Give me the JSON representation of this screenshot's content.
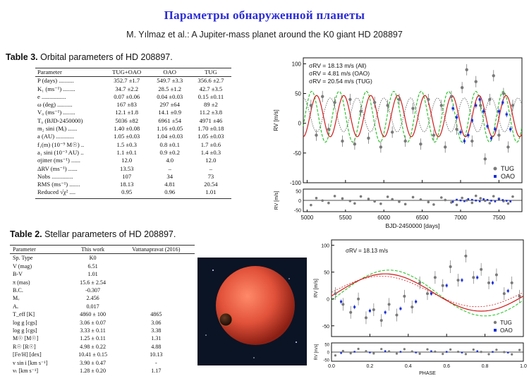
{
  "slide": {
    "title": "Параметры обнаруженной планеты",
    "subtitle": "M. Yılmaz et al.: A Jupiter-mass planet around the K0 giant HD 208897"
  },
  "table3": {
    "label": "Table 3.",
    "caption": "Orbital parameters of HD 208897.",
    "headers": [
      "Parameter",
      "TUG+OAO",
      "OAO",
      "TUG"
    ],
    "rows": [
      [
        "P (days) ..........",
        "352.7 ±1.7",
        "549.7 ±3.3",
        "356.6 ±2.7"
      ],
      [
        "K₁ (ms⁻¹) ........",
        "34.7 ±2.2",
        "28.5 ±1.2",
        "42.7 ±3.5"
      ],
      [
        "e ................",
        "0.07 ±0.06",
        "0.04 ±0.03",
        "0.15 ±0.11"
      ],
      [
        "ω (deg) ..........",
        "167 ±83",
        "297 ±64",
        "89 ±2"
      ],
      [
        "V₀ (ms⁻¹) ........",
        "12.1 ±1.8",
        "14.1 ±0.9",
        "11.2 ±3.8"
      ],
      [
        "T₀ (BJD-2450000)",
        "5036 ±82",
        "6961 ±54",
        "4971 ±46"
      ],
      [
        "m₂ sini (Mⱼ) ......",
        "1.40 ±0.08",
        "1.16 ±0.05",
        "1.70 ±0.18"
      ],
      [
        "a (AU) ............",
        "1.05 ±0.03",
        "1.04 ±0.03",
        "1.05 ±0.03"
      ],
      [
        "f₁(m) (10⁻⁹ M☉) ..",
        "1.5 ±0.3",
        "0.8 ±0.1",
        "1.7 ±0.6"
      ],
      [
        "a₁ sini (10⁻³ AU) ..",
        "1.1 ±0.1",
        "0.9 ±0.2",
        "1.4 ±0.3"
      ],
      [
        "σjitter (ms⁻¹) ......",
        "12.0",
        "4.0",
        "12.0"
      ],
      [
        "ΔRV (ms⁻¹) ......",
        "13.53",
        "–",
        "–"
      ],
      [
        "Nobs ..............",
        "107",
        "34",
        "73"
      ],
      [
        "RMS (ms⁻¹) .......",
        "18.13",
        "4.81",
        "20.54"
      ],
      [
        "Reduced √χ² ....",
        "0.95",
        "0.96",
        "1.01"
      ]
    ]
  },
  "table2": {
    "label": "Table 2.",
    "caption": "Stellar parameters of HD 208897.",
    "headers": [
      "Parameter",
      "This work",
      "Vattanapravat (2016)"
    ],
    "rows": [
      [
        "Sp. Type",
        "K0",
        ""
      ],
      [
        "V (mag)",
        "6.51",
        ""
      ],
      [
        "B-V",
        "1.01",
        ""
      ],
      [
        "π (mas)",
        "15.6 ± 2.54",
        ""
      ],
      [
        "B.C.",
        "-0.307",
        ""
      ],
      [
        "Mᵥ",
        "2.456",
        ""
      ],
      [
        "Aᵥ",
        "0.017",
        ""
      ],
      [
        "T_eff [K]",
        "4860 ± 100",
        "4865"
      ],
      [
        "log g [cgs]",
        "3.06 ± 0.07",
        "3.06"
      ],
      [
        "log g [cgs]",
        "3.33 ± 0.11",
        "3.38"
      ],
      [
        "M☉ [M☉]",
        "1.25 ± 0.11",
        "1.31"
      ],
      [
        "R☉ [R☉]",
        "4.98 ± 0.22",
        "4.88"
      ],
      [
        "[Fe/H] [dex]",
        "10.41 ± 0.15",
        "10.13"
      ],
      [
        "v sin i [km s⁻¹]",
        "3.90 ± 0.47",
        "-"
      ],
      [
        "vₜ [km s⁻¹]",
        "1.28 ± 0.20",
        "1.17"
      ]
    ]
  },
  "plot_top": {
    "legend_lines": [
      "σRV = 18.13 m/s (All)",
      "σRV = 4.81 m/s (OAO)",
      "σRV = 20.54 m/s (TUG)"
    ],
    "series_names": [
      "TUG",
      "OAO"
    ],
    "ylabel": "RV [m/s]",
    "resid_ylabel": "RV [m/s]",
    "xlabel": "BJD-2450000 [days]",
    "x_ticks": [
      "5000",
      "5500",
      "6000",
      "6500",
      "7000",
      "7500"
    ],
    "y_ticks": [
      "100",
      "50",
      "0",
      "-50",
      "-100"
    ],
    "resid_ticks": [
      "50",
      "0",
      "-50"
    ]
  },
  "plot_bottom": {
    "legend_line": "σRV = 18.13 m/s",
    "series_names": [
      "TUG",
      "OAO"
    ],
    "ylabel": "RV [m/s]",
    "resid_ylabel": "RV [m/s]",
    "xlabel": "PHASE",
    "x_ticks": [
      "0.0",
      "0.2",
      "0.4",
      "0.6",
      "0.8",
      "1.0"
    ],
    "y_ticks": [
      "100",
      "50",
      "0",
      "-50"
    ],
    "resid_ticks": [
      "50",
      "0",
      "-50"
    ]
  },
  "colors": {
    "title": "#2b2bd6",
    "tug": "#7a7a7a",
    "oao": "#1a2fd6",
    "fit_all": "#d11a1a",
    "fit_oao": "#20c020",
    "planet": "#e2523a",
    "space": "#0b1424"
  },
  "chart_data": [
    {
      "type": "scatter",
      "title": "",
      "xlabel": "BJD-2450000 [days]",
      "ylabel": "RV [m/s]",
      "xlim": [
        4950,
        7800
      ],
      "ylim": [
        -100,
        110
      ],
      "grid": false,
      "legend": "bottom-right",
      "series": [
        {
          "name": "TUG",
          "x": [
            5050,
            5120,
            5200,
            5280,
            5360,
            5460,
            5560,
            5620,
            5700,
            5800,
            5880,
            5960,
            6050,
            6110,
            6200,
            6280,
            6380,
            6480,
            6580,
            6650,
            6750,
            6800,
            6880,
            6950,
            7020,
            7080,
            7150,
            7200,
            7260,
            7320,
            7380,
            7430,
            7500,
            7560,
            7620,
            7680
          ],
          "y": [
            30,
            -20,
            45,
            -10,
            35,
            -30,
            40,
            -35,
            20,
            -25,
            35,
            -40,
            30,
            -15,
            40,
            -30,
            25,
            -35,
            40,
            -20,
            30,
            -40,
            45,
            -10,
            60,
            90,
            -30,
            70,
            30,
            -60,
            40,
            80,
            -20,
            50,
            -40,
            30
          ]
        },
        {
          "name": "OAO",
          "x": [
            6900,
            6950,
            7000,
            7050,
            7100,
            7150,
            7200,
            7250,
            7300,
            7350,
            7400,
            7450,
            7500,
            7550,
            7600,
            7650
          ],
          "y": [
            25,
            10,
            -15,
            -30,
            -20,
            5,
            30,
            40,
            20,
            -5,
            -25,
            -10,
            20,
            35,
            15,
            -10
          ]
        }
      ]
    },
    {
      "type": "scatter",
      "title": "",
      "xlabel": "PHASE",
      "ylabel": "RV [m/s]",
      "xlim": [
        0,
        1
      ],
      "ylim": [
        -70,
        110
      ],
      "grid": false,
      "legend": "bottom-right",
      "series": [
        {
          "name": "TUG",
          "x": [
            0.02,
            0.06,
            0.1,
            0.14,
            0.18,
            0.22,
            0.26,
            0.3,
            0.34,
            0.38,
            0.42,
            0.46,
            0.5,
            0.54,
            0.58,
            0.62,
            0.66,
            0.7,
            0.74,
            0.78,
            0.82,
            0.86,
            0.9,
            0.94,
            0.98
          ],
          "y": [
            10,
            -10,
            -25,
            0,
            -35,
            -20,
            -40,
            -10,
            -30,
            5,
            -15,
            30,
            10,
            40,
            25,
            60,
            35,
            80,
            40,
            55,
            30,
            45,
            10,
            30,
            5
          ]
        },
        {
          "name": "OAO",
          "x": [
            0.05,
            0.12,
            0.2,
            0.28,
            0.36,
            0.44,
            0.52,
            0.6,
            0.68,
            0.76,
            0.84,
            0.92
          ],
          "y": [
            -5,
            -15,
            -22,
            -25,
            -18,
            -5,
            10,
            25,
            35,
            40,
            30,
            15
          ]
        }
      ]
    }
  ]
}
